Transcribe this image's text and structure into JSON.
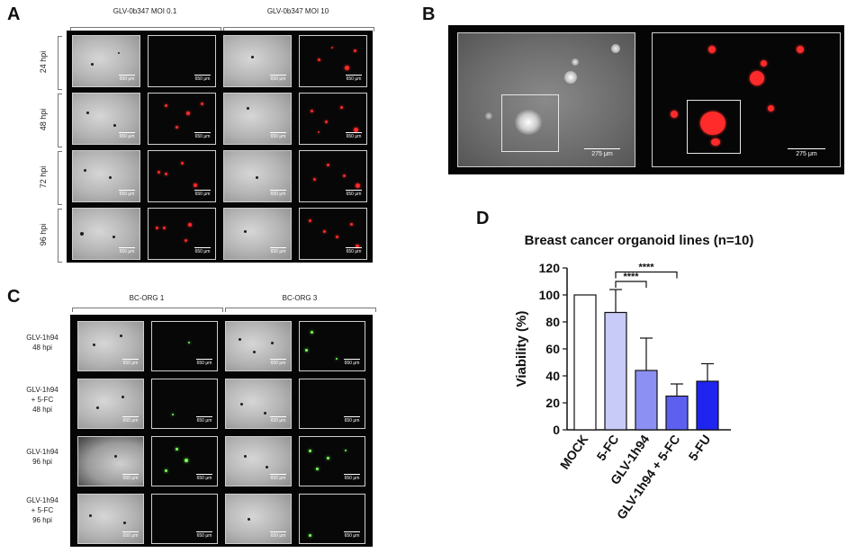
{
  "panels": {
    "a": {
      "label": "A",
      "columns": [
        "GLV-0b347 MOI 0.1",
        "GLV-0b347 MOI 10"
      ],
      "rows": [
        "24 hpi",
        "48 hpi",
        "72 hpi",
        "96 hpi"
      ],
      "scale_bar": "650 μm"
    },
    "b": {
      "label": "B",
      "scale_bar": "275 μm"
    },
    "c": {
      "label": "C",
      "columns": [
        "BC-ORG 1",
        "BC-ORG 3"
      ],
      "rows": [
        [
          "GLV-1h94",
          "48 hpi"
        ],
        [
          "GLV-1h94",
          "+ 5-FC",
          "48 hpi"
        ],
        [
          "GLV-1h94",
          "96 hpi"
        ],
        [
          "GLV-1h94",
          "+ 5-FC",
          "96 hpi"
        ]
      ],
      "scale_bar": "650 μm"
    },
    "d": {
      "label": "D"
    }
  },
  "chart_data": {
    "type": "bar",
    "title": "Breast cancer organoid lines (n=10)",
    "ylabel": "Viability (%)",
    "xlabel": "",
    "categories": [
      "MOCK",
      "5-FC",
      "GLV-1h94",
      "GLV-1h94 + 5-FC",
      "5-FU"
    ],
    "values": [
      100,
      87,
      44,
      25,
      36
    ],
    "errors": [
      0,
      17,
      24,
      9,
      13
    ],
    "colors": [
      "#ffffff",
      "#c8cbf7",
      "#8c90f2",
      "#5d60ef",
      "#1f25ee"
    ],
    "ylim": [
      0,
      120
    ],
    "yticks": [
      0,
      20,
      40,
      60,
      80,
      100,
      120
    ],
    "grid": false,
    "significance": [
      {
        "from": 1,
        "to": 2,
        "label": "****"
      },
      {
        "from": 1,
        "to": 3,
        "label": "****"
      }
    ]
  }
}
